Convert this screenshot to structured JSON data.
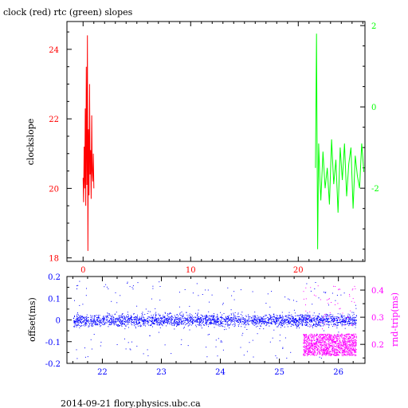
{
  "title": "clock (red) rtc (green) slopes",
  "footer": "2014-09-21 flory.physics.ubc.ca",
  "colors": {
    "clock": "#ff0000",
    "rtc": "#00ff00",
    "offset": "#0000ff",
    "rndtrip": "#ff00ff",
    "axes": "#000000"
  },
  "chart_data": [
    {
      "type": "line",
      "title": "clock (red) rtc (green) slopes",
      "ylabel": "clockslope",
      "xlim": [
        -1.5,
        26.2
      ],
      "ylim": [
        17.9,
        24.8
      ],
      "xticks": [
        0,
        10,
        20
      ],
      "yticks": [
        18,
        20,
        22,
        24
      ],
      "y2lim": [
        -3.8,
        2.1
      ],
      "y2ticks": [
        -2,
        0,
        2
      ],
      "series": [
        {
          "name": "clock",
          "axis": "left",
          "x": [
            0.0,
            0.05,
            0.1,
            0.15,
            0.2,
            0.25,
            0.3,
            0.35,
            0.4,
            0.45,
            0.5,
            0.55,
            0.6,
            0.65,
            0.7,
            0.75,
            0.8,
            0.85,
            0.9,
            0.95,
            1.0
          ],
          "y": [
            20.3,
            19.6,
            21.2,
            20.0,
            22.3,
            19.5,
            23.5,
            20.1,
            24.4,
            18.2,
            21.7,
            19.8,
            23.0,
            20.4,
            21.1,
            19.7,
            22.1,
            20.5,
            20.2,
            21.0,
            20.0
          ]
        },
        {
          "name": "rtc",
          "axis": "right",
          "x": [
            21.6,
            21.7,
            21.8,
            21.9,
            22.0,
            22.1,
            22.3,
            22.5,
            22.7,
            22.9,
            23.1,
            23.3,
            23.5,
            23.7,
            23.9,
            24.1,
            24.3,
            24.5,
            24.7,
            24.9,
            25.1,
            25.3,
            25.5,
            25.7,
            25.9,
            26.1
          ],
          "y": [
            -1.5,
            1.8,
            -3.5,
            -0.9,
            -1.7,
            -2.3,
            -1.1,
            -2.0,
            -1.5,
            -2.4,
            -0.8,
            -1.9,
            -1.3,
            -2.6,
            -1.0,
            -1.8,
            -0.9,
            -2.2,
            -1.4,
            -1.0,
            -2.5,
            -1.2,
            -1.7,
            -2.0,
            -0.9,
            -1.6
          ]
        }
      ]
    },
    {
      "type": "scatter",
      "ylabel": "offset(ms)",
      "y2label": "rnd-trip(ms)",
      "xlim": [
        21.4,
        26.45
      ],
      "ylim": [
        -0.2,
        0.2
      ],
      "xticks": [
        22,
        23,
        24,
        25,
        26
      ],
      "yticks": [
        -0.2,
        -0.1,
        0,
        0.1,
        0.2
      ],
      "y2lim": [
        0.13,
        0.45
      ],
      "y2ticks": [
        0.2,
        0.3,
        0.4
      ],
      "series": [
        {
          "name": "offset",
          "axis": "left",
          "x_range": [
            21.5,
            26.3
          ],
          "center": 0.0,
          "band_half_width": 0.03,
          "outlier_range": [
            -0.18,
            0.18
          ]
        },
        {
          "name": "rnd-trip",
          "axis": "right",
          "x_range": [
            25.4,
            26.3
          ],
          "band": [
            0.16,
            0.24
          ]
        }
      ]
    }
  ]
}
